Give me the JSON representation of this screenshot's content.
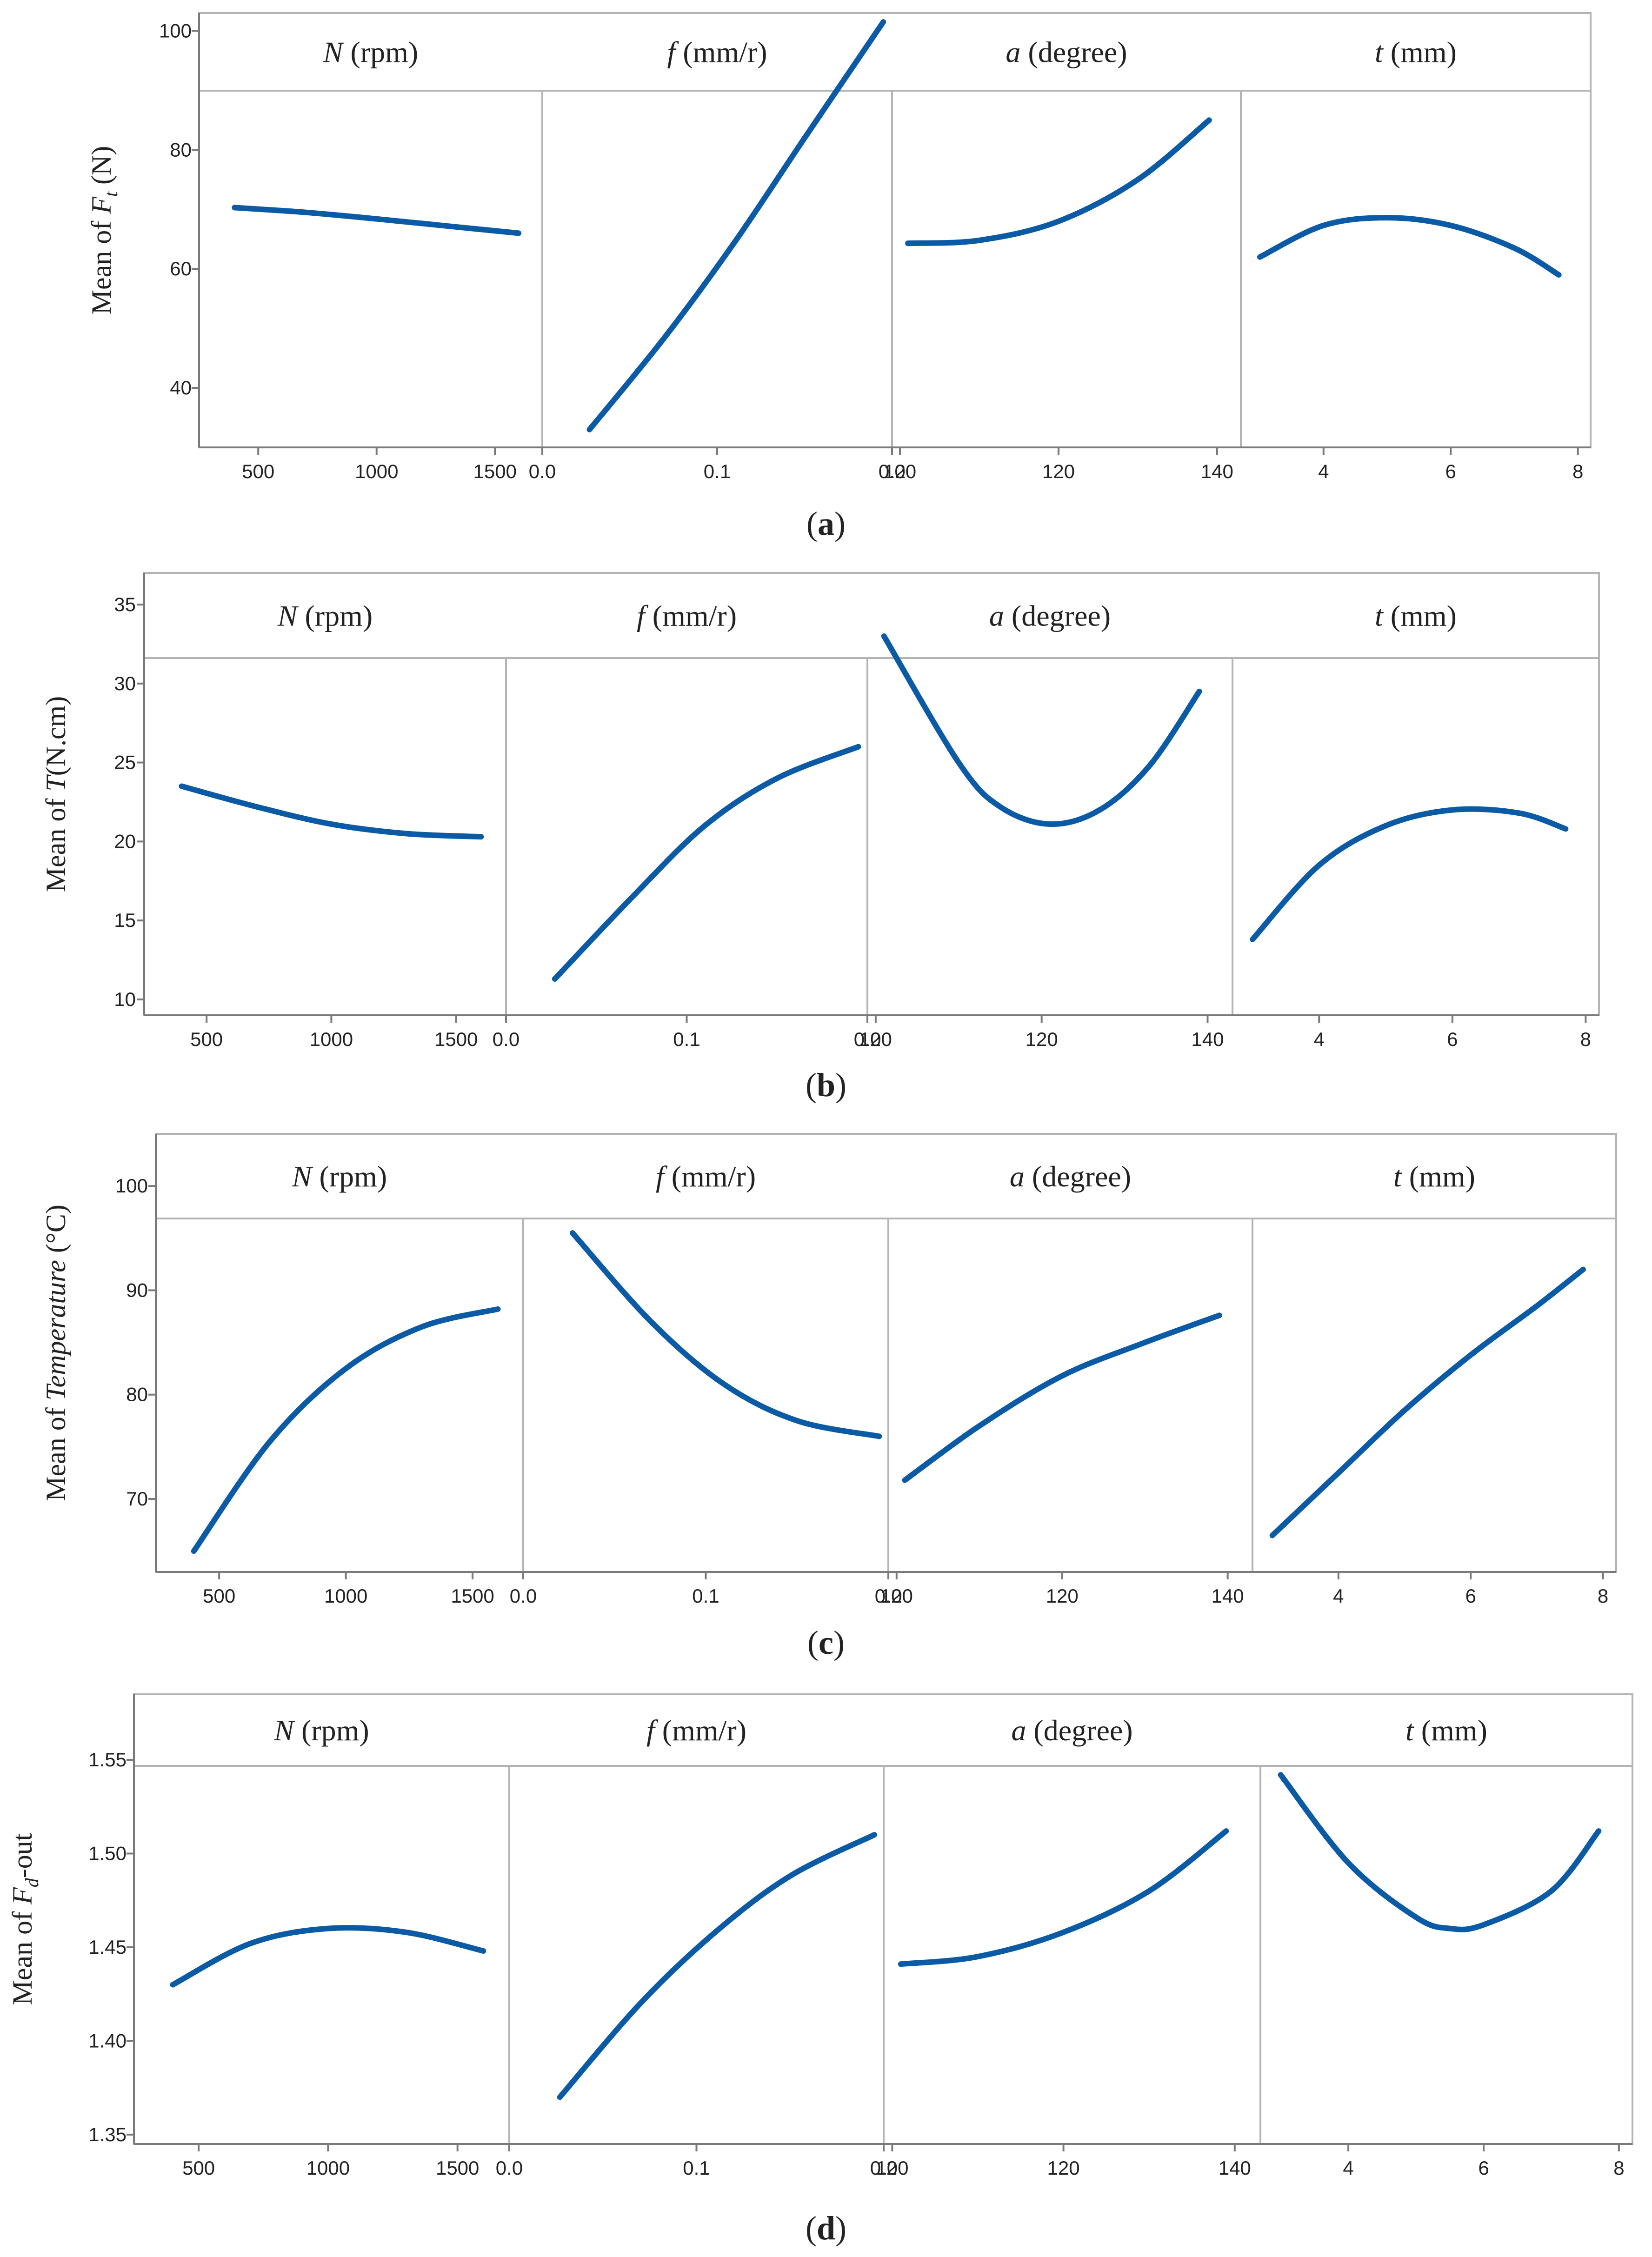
{
  "colors": {
    "line": "#0a5aa6",
    "frame": "#b4b4b4",
    "axis": "#7a7a7a",
    "text": "#222222",
    "header_bg": "#ffffff"
  },
  "chart_data": [
    {
      "type": "line",
      "caption": "a",
      "ylabel_prefix": "Mean of ",
      "ylabel_var": "F",
      "ylabel_sub": "t",
      "ylabel_suffix": " (N)",
      "ylim": [
        30,
        103
      ],
      "yticks": [
        40,
        60,
        80,
        100
      ],
      "ytick_labels": [
        "40",
        "60",
        "80",
        "100"
      ],
      "panels": [
        {
          "name": "N",
          "unit": " (rpm)",
          "xlim": [
            250,
            1700
          ],
          "xticks": [
            500,
            1000,
            1500
          ],
          "xtick_labels": [
            "500",
            "1000",
            "1500"
          ],
          "x": [
            400,
            700,
            1000,
            1300,
            1600
          ],
          "y": [
            70.3,
            69.5,
            68.4,
            67.2,
            66.0
          ]
        },
        {
          "name": "f",
          "unit": " (mm/r)",
          "xlim": [
            0.0,
            0.2
          ],
          "xticks": [
            0.0,
            0.1,
            0.2
          ],
          "xtick_labels": [
            "0.0",
            "0.1",
            "0.2"
          ],
          "x": [
            0.027,
            0.07,
            0.11,
            0.15,
            0.195
          ],
          "y": [
            33.0,
            48.5,
            64.5,
            82.0,
            101.5
          ]
        },
        {
          "name": "a",
          "unit": " (degree)",
          "xlim": [
            99,
            143
          ],
          "xticks": [
            100,
            120,
            140
          ],
          "xtick_labels": [
            "100",
            "120",
            "140"
          ],
          "x": [
            101,
            110,
            120,
            130,
            139
          ],
          "y": [
            64.3,
            64.8,
            68.0,
            75.0,
            85.0
          ]
        },
        {
          "name": "t",
          "unit": " (mm)",
          "xlim": [
            2.7,
            8.2
          ],
          "xticks": [
            4,
            6,
            8
          ],
          "xtick_labels": [
            "4",
            "6",
            "8"
          ],
          "x": [
            3.0,
            4.0,
            5.0,
            6.0,
            7.0,
            7.7
          ],
          "y": [
            62.0,
            67.3,
            68.6,
            67.3,
            63.5,
            59.0
          ]
        }
      ]
    },
    {
      "type": "line",
      "caption": "b",
      "ylabel_prefix": "Mean of ",
      "ylabel_var": "T",
      "ylabel_sub": "",
      "ylabel_suffix": "(N.cm)",
      "ylim": [
        9,
        37
      ],
      "yticks": [
        10,
        15,
        20,
        25,
        30,
        35
      ],
      "ytick_labels": [
        "10",
        "15",
        "20",
        "25",
        "30",
        "35"
      ],
      "panels": [
        {
          "name": "N",
          "unit": " (rpm)",
          "xlim": [
            250,
            1700
          ],
          "xticks": [
            500,
            1000,
            1500
          ],
          "xtick_labels": [
            "500",
            "1000",
            "1500"
          ],
          "x": [
            400,
            700,
            1000,
            1300,
            1600
          ],
          "y": [
            23.5,
            22.2,
            21.1,
            20.5,
            20.3
          ]
        },
        {
          "name": "f",
          "unit": " (mm/r)",
          "xlim": [
            0.0,
            0.2
          ],
          "xticks": [
            0.0,
            0.1,
            0.2
          ],
          "xtick_labels": [
            "0.0",
            "0.1",
            "0.2"
          ],
          "x": [
            0.027,
            0.07,
            0.11,
            0.15,
            0.195
          ],
          "y": [
            11.3,
            16.5,
            21.0,
            24.0,
            26.0
          ]
        },
        {
          "name": "a",
          "unit": " (degree)",
          "xlim": [
            99,
            143
          ],
          "xticks": [
            100,
            120,
            140
          ],
          "xtick_labels": [
            "100",
            "120",
            "140"
          ],
          "x": [
            101,
            110,
            115,
            121,
            127,
            133,
            139
          ],
          "y": [
            33.0,
            25.0,
            22.2,
            21.1,
            22.0,
            24.8,
            29.5
          ]
        },
        {
          "name": "t",
          "unit": " (mm)",
          "xlim": [
            2.7,
            8.2
          ],
          "xticks": [
            4,
            6,
            8
          ],
          "xtick_labels": [
            "4",
            "6",
            "8"
          ],
          "x": [
            3.0,
            4.0,
            5.0,
            6.0,
            7.0,
            7.7
          ],
          "y": [
            13.8,
            18.5,
            21.0,
            22.0,
            21.8,
            20.8
          ]
        }
      ]
    },
    {
      "type": "line",
      "caption": "c",
      "ylabel_prefix": "Mean of ",
      "ylabel_var": "Temperature",
      "ylabel_sub": "",
      "ylabel_suffix": " (°C)",
      "ylim": [
        63,
        105
      ],
      "yticks": [
        70,
        80,
        90,
        100
      ],
      "ytick_labels": [
        "70",
        "80",
        "90",
        "100"
      ],
      "panels": [
        {
          "name": "N",
          "unit": " (rpm)",
          "xlim": [
            250,
            1700
          ],
          "xticks": [
            500,
            1000,
            1500
          ],
          "xtick_labels": [
            "500",
            "1000",
            "1500"
          ],
          "x": [
            400,
            700,
            1000,
            1300,
            1600
          ],
          "y": [
            65.0,
            75.5,
            82.5,
            86.5,
            88.2
          ]
        },
        {
          "name": "f",
          "unit": " (mm/r)",
          "xlim": [
            0.0,
            0.2
          ],
          "xticks": [
            0.0,
            0.1,
            0.2
          ],
          "xtick_labels": [
            "0.0",
            "0.1",
            "0.2"
          ],
          "x": [
            0.027,
            0.07,
            0.11,
            0.15,
            0.195
          ],
          "y": [
            95.5,
            87.0,
            81.0,
            77.5,
            76.0
          ]
        },
        {
          "name": "a",
          "unit": " (degree)",
          "xlim": [
            99,
            143
          ],
          "xticks": [
            100,
            120,
            140
          ],
          "xtick_labels": [
            "100",
            "120",
            "140"
          ],
          "x": [
            101,
            110,
            120,
            130,
            139
          ],
          "y": [
            71.8,
            77.0,
            81.8,
            85.0,
            87.6
          ]
        },
        {
          "name": "t",
          "unit": " (mm)",
          "xlim": [
            2.7,
            8.2
          ],
          "xticks": [
            4,
            6,
            8
          ],
          "xtick_labels": [
            "4",
            "6",
            "8"
          ],
          "x": [
            3.0,
            4.0,
            5.0,
            6.0,
            7.0,
            7.7
          ],
          "y": [
            66.5,
            72.5,
            78.5,
            83.8,
            88.5,
            92.0
          ]
        }
      ]
    },
    {
      "type": "line",
      "caption": "d",
      "ylabel_prefix": "Mean of ",
      "ylabel_var": "F",
      "ylabel_sub": "d",
      "ylabel_suffix": "-out",
      "ylim": [
        1.345,
        1.585
      ],
      "yticks": [
        1.35,
        1.4,
        1.45,
        1.5,
        1.55
      ],
      "ytick_labels": [
        "1.35",
        "1.40",
        "1.45",
        "1.50",
        "1.55"
      ],
      "panels": [
        {
          "name": "N",
          "unit": " (rpm)",
          "xlim": [
            250,
            1700
          ],
          "xticks": [
            500,
            1000,
            1500
          ],
          "xtick_labels": [
            "500",
            "1000",
            "1500"
          ],
          "x": [
            400,
            700,
            1000,
            1300,
            1600
          ],
          "y": [
            1.43,
            1.452,
            1.46,
            1.458,
            1.448
          ]
        },
        {
          "name": "f",
          "unit": " (mm/r)",
          "xlim": [
            0.0,
            0.2
          ],
          "xticks": [
            0.0,
            0.1,
            0.2
          ],
          "xtick_labels": [
            "0.0",
            "0.1",
            "0.2"
          ],
          "x": [
            0.027,
            0.07,
            0.11,
            0.15,
            0.195
          ],
          "y": [
            1.37,
            1.42,
            1.458,
            1.488,
            1.51
          ]
        },
        {
          "name": "a",
          "unit": " (degree)",
          "xlim": [
            99,
            143
          ],
          "xticks": [
            100,
            120,
            140
          ],
          "xtick_labels": [
            "100",
            "120",
            "140"
          ],
          "x": [
            101,
            110,
            120,
            130,
            139
          ],
          "y": [
            1.441,
            1.445,
            1.458,
            1.48,
            1.512
          ]
        },
        {
          "name": "t",
          "unit": " (mm)",
          "xlim": [
            2.7,
            8.2
          ],
          "xticks": [
            4,
            6,
            8
          ],
          "xtick_labels": [
            "4",
            "6",
            "8"
          ],
          "x": [
            3.0,
            4.0,
            5.0,
            5.5,
            6.0,
            7.0,
            7.7
          ],
          "y": [
            1.542,
            1.495,
            1.466,
            1.46,
            1.462,
            1.48,
            1.512
          ]
        }
      ]
    }
  ]
}
